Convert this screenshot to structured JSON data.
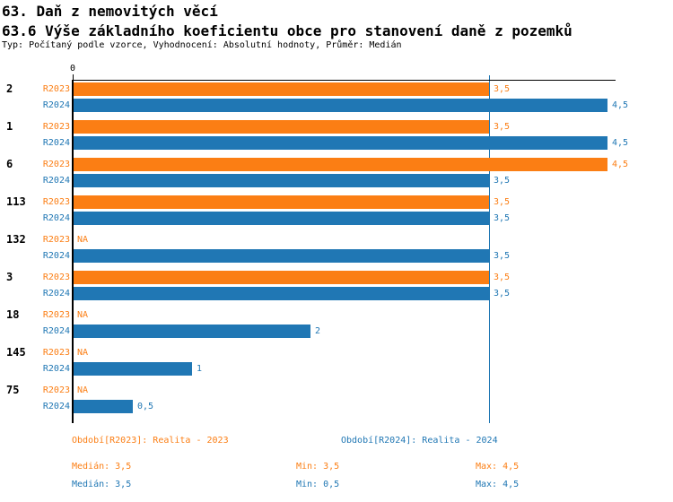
{
  "header": {
    "title": "63. Daň z nemovitých věcí",
    "subtitle": "63.6 Výše základního koeficientu obce pro stanovení daně z pozemků",
    "meta": "Typ: Počítaný podle vzorce, Vyhodnocení: Absolutní hodnoty, Průměr: Medián"
  },
  "colors": {
    "r2023_orange": "#FB7E14",
    "r2024_blue": "#2077B4",
    "axis_black": "#000000"
  },
  "chart_data": {
    "type": "bar",
    "orientation": "horizontal",
    "title": "",
    "xlabel": "",
    "ylabel": "",
    "xlim": [
      0,
      4.5
    ],
    "grid": false,
    "axis_tick_label": "0",
    "na_label": "NA",
    "reference_line": {
      "value": 3.5,
      "color": "#2077B4"
    },
    "categories": [
      "2",
      "1",
      "6",
      "113",
      "132",
      "3",
      "18",
      "145",
      "75"
    ],
    "series": [
      {
        "name": "R2023",
        "color": "#FB7E14",
        "values": [
          3.5,
          3.5,
          4.5,
          3.5,
          null,
          3.5,
          null,
          null,
          null
        ],
        "value_labels": [
          "3,5",
          "3,5",
          "4,5",
          "3,5",
          "NA",
          "3,5",
          "NA",
          "NA",
          "NA"
        ]
      },
      {
        "name": "R2024",
        "color": "#2077B4",
        "values": [
          4.5,
          4.5,
          3.5,
          3.5,
          3.5,
          3.5,
          2,
          1,
          0.5
        ],
        "value_labels": [
          "4,5",
          "4,5",
          "3,5",
          "3,5",
          "3,5",
          "3,5",
          "2",
          "1",
          "0,5"
        ]
      }
    ]
  },
  "legend": {
    "r2023": "Období[R2023]: Realita - 2023",
    "r2024": "Období[R2024]: Realita - 2024"
  },
  "stats": {
    "r2023": {
      "median": "Medián: 3,5",
      "min": "Min: 3,5",
      "max": "Max: 4,5"
    },
    "r2024": {
      "median": "Medián: 3,5",
      "min": "Min: 0,5",
      "max": "Max: 4,5"
    }
  }
}
